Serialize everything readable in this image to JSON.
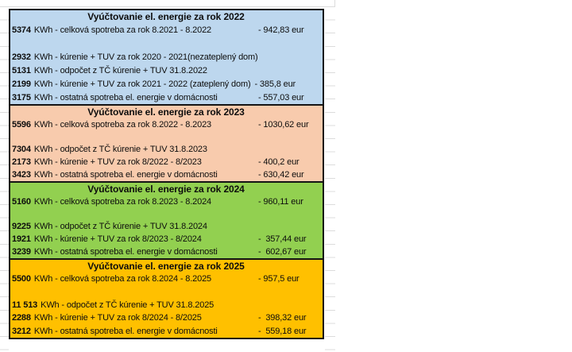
{
  "colors": {
    "section_2022": "#BDD7EE",
    "section_2023": "#F8CBAD",
    "section_2024": "#92D050",
    "section_2025": "#FFC000",
    "border": "#141414",
    "gridline": "#dcdcdc"
  },
  "table": {
    "sections": [
      {
        "year": "2022",
        "title": "Vyúčtovanie el. energie za rok 2022",
        "color": "#BDD7EE",
        "rows": [
          {
            "kwh": "5374",
            "text": "KWh - celková spotreba za rok 8.2021 - 8.2022",
            "value": "- 942,83 eur"
          },
          {
            "kwh": "",
            "text": "",
            "value": ""
          },
          {
            "kwh": "2932",
            "text": "KWh - kúrenie + TUV za rok 2020 - 2021(nezateplený dom)",
            "value": ""
          },
          {
            "kwh": "5131",
            "text": "KWh - odpočet z TČ kúrenie + TUV 31.8.2022",
            "value": ""
          },
          {
            "kwh": "2199",
            "text": "KWh - kúrenie + TUV za rok 2021 - 2022 (zateplený dom)",
            "value": "- 385,8 eur"
          },
          {
            "kwh": "3175",
            "text": "KWh - ostatná spotreba el. energie v domácnosti",
            "value": "- 557,03 eur"
          }
        ]
      },
      {
        "year": "2023",
        "title": "Vyúčtovanie el. energie za rok 2023",
        "color": "#F8CBAD",
        "rows": [
          {
            "kwh": "5596",
            "text": "KWh - celková spotreba za rok 8.2022 - 8.2023",
            "value": "- 1030,62 eur"
          },
          {
            "kwh": "",
            "text": "",
            "value": ""
          },
          {
            "kwh": "7304",
            "text": "KWh - odpočet z TČ kúrenie + TUV 31.8.2023",
            "value": ""
          },
          {
            "kwh": "2173",
            "text": "KWh - kúrenie + TUV za rok 8/2022 - 8/2023",
            "value": "- 400,2 eur"
          },
          {
            "kwh": "3423",
            "text": "KWh - ostatná spotreba el. energie v domácnosti",
            "value": "- 630,42 eur"
          }
        ]
      },
      {
        "year": "2024",
        "title": "Vyúčtovanie el. energie za rok 2024",
        "color": "#92D050",
        "rows": [
          {
            "kwh": "5160",
            "text": "KWh - celková spotreba za rok 8.2023 - 8.2024",
            "value": "- 960,11 eur"
          },
          {
            "kwh": "",
            "text": "",
            "value": ""
          },
          {
            "kwh": "9225",
            "text": "KWh - odpočet z TČ kúrenie + TUV 31.8.2024",
            "value": ""
          },
          {
            "kwh": "1921",
            "text": "KWh - kúrenie + TUV za rok 8/2023 - 8/2024",
            "value": "-  357,44 eur"
          },
          {
            "kwh": "3239",
            "text": "KWh - ostatná spotreba el. energie v domácnosti",
            "value": "-  602,67 eur"
          }
        ]
      },
      {
        "year": "2025",
        "title": "Vyúčtovanie el. energie za rok 2025",
        "color": "#FFC000",
        "rows": [
          {
            "kwh": "5500",
            "text": "KWh - celková spotreba za rok 8.2024 - 8.2025",
            "value": "- 957,5 eur"
          },
          {
            "kwh": "",
            "text": "",
            "value": ""
          },
          {
            "kwh": "11 513",
            "text": "KWh - odpočet z TČ kúrenie + TUV 31.8.2025",
            "value": ""
          },
          {
            "kwh": "2288",
            "text": "KWh - kúrenie + TUV za rok 8/2024 - 8/2025",
            "value": "-  398,32 eur"
          },
          {
            "kwh": "3212",
            "text": "KWh - ostatná spotreba el. energie v domácnosti",
            "value": "-  559,18 eur"
          }
        ]
      }
    ]
  }
}
